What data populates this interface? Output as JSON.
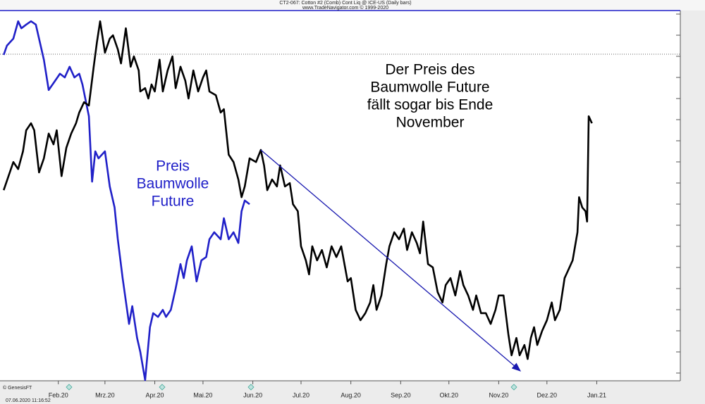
{
  "chart_data": {
    "type": "line",
    "title": "CT2-067: Cotton #2 (Comb) Cont Liq @ ICE-US  (Daily bars)",
    "subtitle": "www.TradeNavigator.com © 1999-2020",
    "source": "© GenesisFT",
    "timestamp": "07.06.2020 11:16:52",
    "annotations": [
      {
        "lines": [
          "Der Preis des",
          "Baumwolle Future",
          "fällt sogar bis Ende",
          "November"
        ],
        "color": "#000000"
      },
      {
        "lines": [
          "Preis",
          "Baumwolle",
          "Future"
        ],
        "color": "#2020c8"
      }
    ],
    "xlim": [
      -5.3,
      418
    ],
    "xticks": [
      {
        "value": 31,
        "label": "Feb.20"
      },
      {
        "value": 60,
        "label": "Mrz.20"
      },
      {
        "value": 91,
        "label": "Apr.20"
      },
      {
        "value": 121,
        "label": "Mai.20"
      },
      {
        "value": 152,
        "label": "Jun.20"
      },
      {
        "value": 182,
        "label": "Jul.20"
      },
      {
        "value": 213,
        "label": "Aug.20"
      },
      {
        "value": 244,
        "label": "Sep.20"
      },
      {
        "value": 274,
        "label": "Okt.20"
      },
      {
        "value": 305,
        "label": "Nov.20"
      },
      {
        "value": 335,
        "label": "Dez.20"
      },
      {
        "value": 366,
        "label": "Jan.21"
      }
    ],
    "ylim": [
      0,
      100
    ],
    "series": [
      {
        "color": "#2020c8",
        "x": [
          -3,
          -1,
          3,
          6,
          8,
          11,
          14,
          17,
          19,
          22,
          25,
          29,
          32,
          35,
          38,
          41,
          44,
          46,
          50,
          52,
          54,
          56,
          60,
          63,
          66,
          68,
          71,
          75,
          77,
          80,
          82,
          85,
          88,
          90,
          93,
          96,
          98,
          101,
          104,
          107,
          109,
          111,
          114,
          117,
          120,
          123,
          125,
          128,
          132,
          134,
          137,
          140,
          143,
          145,
          147,
          150
        ],
        "values": [
          88,
          90.5,
          92.4,
          97.1,
          95.2,
          96.2,
          97.1,
          96.2,
          92.4,
          86.7,
          78.5,
          81,
          82.9,
          81.9,
          84.8,
          81.9,
          82.9,
          80,
          71.4,
          53.7,
          61.9,
          60,
          61.9,
          52.4,
          46.7,
          38.1,
          27.6,
          15.2,
          20,
          11.4,
          7.6,
          0,
          14.3,
          18.1,
          17.1,
          19,
          17.1,
          19,
          24.8,
          31.4,
          27.6,
          32.4,
          36.2,
          26.7,
          32.4,
          33.3,
          38.1,
          40,
          38.1,
          43.8,
          38.1,
          40,
          37.1,
          45.7,
          48.6,
          47.6
        ]
      },
      {
        "color": "#000000",
        "x": [
          -3,
          0,
          3,
          6,
          9,
          11,
          14,
          16,
          19,
          22,
          25,
          28,
          30,
          33,
          36,
          39,
          42,
          44,
          47,
          50,
          53,
          55,
          57,
          60,
          63,
          65,
          68,
          70,
          73,
          76,
          78,
          81,
          82,
          85,
          87,
          89,
          91,
          94,
          96,
          99,
          102,
          104,
          107,
          110,
          112,
          115,
          118,
          121,
          123,
          125,
          129,
          132,
          134,
          137,
          140,
          143,
          145,
          147,
          150,
          154,
          157,
          159,
          161,
          164,
          167,
          169,
          172,
          175,
          177,
          180,
          182,
          185,
          187,
          189,
          192,
          195,
          198,
          201,
          204,
          207,
          211,
          213,
          216,
          219,
          222,
          225,
          227,
          229,
          232,
          235,
          237,
          240,
          243,
          246,
          248,
          251,
          254,
          256,
          258,
          261,
          264,
          267,
          270,
          272,
          275,
          278,
          281,
          283,
          286,
          289,
          291,
          294,
          297,
          300,
          303,
          305,
          308,
          311,
          313,
          316,
          318,
          321,
          323,
          325,
          327,
          329,
          332,
          335,
          338,
          340,
          343,
          346,
          348,
          351,
          354,
          355,
          357,
          359,
          360,
          361,
          363
        ],
        "values": [
          51.4,
          55.2,
          59,
          57.1,
          61.9,
          67.6,
          69.5,
          67.6,
          56.2,
          60,
          66.7,
          63.8,
          67.6,
          55.2,
          62.9,
          66.7,
          69.5,
          72.4,
          75.2,
          74.3,
          84.8,
          91.4,
          97.1,
          88.6,
          92.4,
          93.3,
          89.5,
          85.7,
          95.2,
          84.8,
          87.6,
          83.8,
          78.1,
          79,
          76.2,
          80,
          78.1,
          86.7,
          78.1,
          83.8,
          87.6,
          79,
          84.8,
          81,
          76.2,
          83.8,
          78.1,
          81.9,
          83.8,
          78.1,
          77.1,
          72.4,
          73.3,
          61,
          59,
          54.3,
          49.5,
          52.4,
          60,
          59,
          62.3,
          58.1,
          51.4,
          54.3,
          52.4,
          58.1,
          52.4,
          53.3,
          47.6,
          45.7,
          36.2,
          32.4,
          28.6,
          36.2,
          32.4,
          35.2,
          30.5,
          36.2,
          33.3,
          36.2,
          26.7,
          27.6,
          19,
          16.2,
          18.1,
          21,
          25.7,
          19,
          22.9,
          31.4,
          36.2,
          40,
          38.1,
          41,
          35.2,
          40,
          37.1,
          34.3,
          42.9,
          31.4,
          30.5,
          23.8,
          21,
          25.7,
          27.6,
          22.9,
          29.5,
          25.7,
          22.9,
          19,
          22.9,
          18.1,
          18.1,
          15.2,
          19,
          22.9,
          22.9,
          12.4,
          6.7,
          11.4,
          6.7,
          9.5,
          5.7,
          11.4,
          14.3,
          9.5,
          13.3,
          16.2,
          21,
          16.2,
          19,
          27.6,
          29.5,
          32.4,
          40,
          49.5,
          46.7,
          45.7,
          42.9,
          71.4,
          69.5
        ]
      }
    ]
  }
}
